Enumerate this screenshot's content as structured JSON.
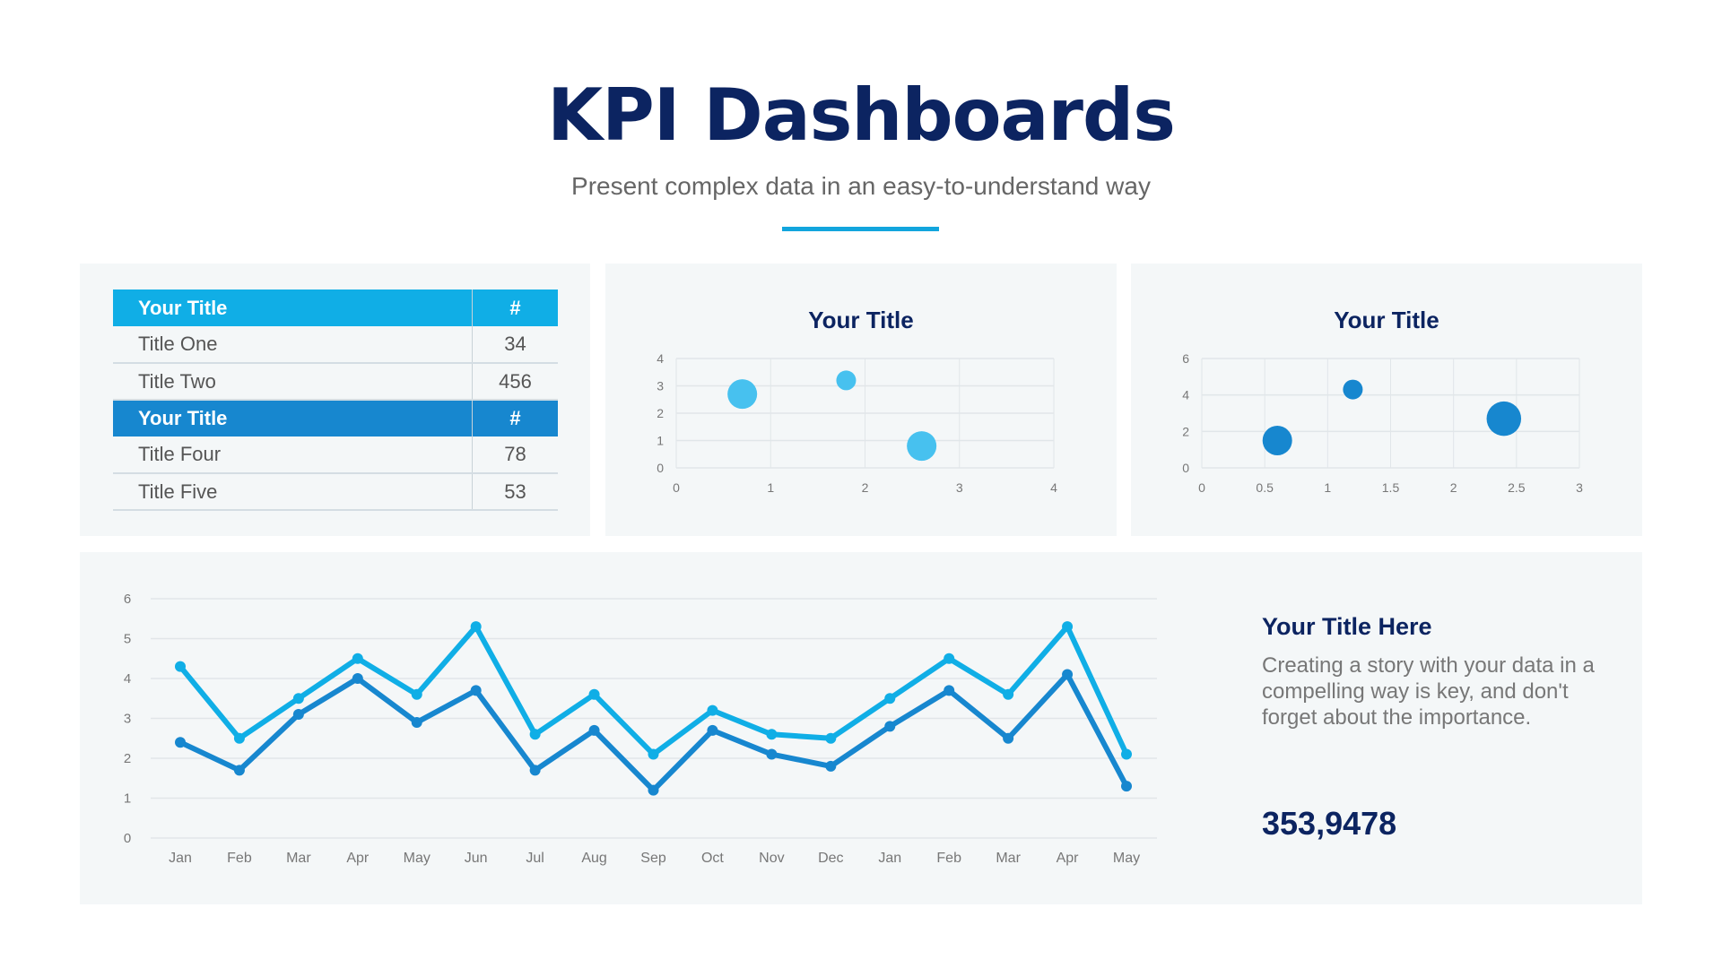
{
  "header": {
    "title": "KPI Dashboards",
    "subtitle": "Present complex data in an easy-to-understand way"
  },
  "colors": {
    "navy": "#0c2461",
    "light_blue": "#10aee6",
    "dark_blue": "#1787cf",
    "panel_bg": "#f4f7f8"
  },
  "table": {
    "rows": [
      {
        "label": "Your Title",
        "value": "#",
        "header": true
      },
      {
        "label": "Title One",
        "value": "34"
      },
      {
        "label": "Title Two",
        "value": "456"
      },
      {
        "label": "Your Title",
        "value": "#",
        "header": true
      },
      {
        "label": "Title Four",
        "value": "78"
      },
      {
        "label": "Title Five",
        "value": "53"
      }
    ]
  },
  "side": {
    "title": "Your Title Here",
    "text": "Creating a story with your data in a compelling way is key, and don't forget about the importance.",
    "number": "353,9478"
  },
  "chart_data": [
    {
      "type": "scatter",
      "title": "Your Title",
      "xlim": [
        0,
        4
      ],
      "ylim": [
        0,
        4
      ],
      "xticks": [
        "0",
        "1",
        "2",
        "3",
        "4"
      ],
      "yticks": [
        "0",
        "1",
        "2",
        "3",
        "4"
      ],
      "grid": true,
      "color": "#47c1ef",
      "points": [
        {
          "x": 0.7,
          "y": 2.7,
          "size": 3
        },
        {
          "x": 1.8,
          "y": 3.2,
          "size": 2
        },
        {
          "x": 2.6,
          "y": 0.8,
          "size": 3
        }
      ]
    },
    {
      "type": "scatter",
      "title": "Your Title",
      "xlim": [
        0,
        3
      ],
      "ylim": [
        0,
        6
      ],
      "xticks": [
        "0",
        "0.5",
        "1",
        "1.5",
        "2",
        "2.5",
        "3"
      ],
      "yticks": [
        "0",
        "2",
        "4",
        "6"
      ],
      "grid": true,
      "color": "#1787cf",
      "points": [
        {
          "x": 0.6,
          "y": 1.5,
          "size": 3
        },
        {
          "x": 1.2,
          "y": 4.3,
          "size": 2
        },
        {
          "x": 2.4,
          "y": 2.7,
          "size": 3.5
        }
      ]
    },
    {
      "type": "line",
      "ylim": [
        0,
        6
      ],
      "yticks": [
        "0",
        "1",
        "2",
        "3",
        "4",
        "5",
        "6"
      ],
      "grid": true,
      "categories": [
        "Jan",
        "Feb",
        "Mar",
        "Apr",
        "May",
        "Jun",
        "Jul",
        "Aug",
        "Sep",
        "Oct",
        "Nov",
        "Dec",
        "Jan",
        "Feb",
        "Mar",
        "Apr",
        "May"
      ],
      "series": [
        {
          "color": "#10aee6",
          "values": [
            4.3,
            2.5,
            3.5,
            4.5,
            3.6,
            5.3,
            2.6,
            3.6,
            2.1,
            3.2,
            2.6,
            2.5,
            3.5,
            4.5,
            3.6,
            5.3,
            2.1
          ]
        },
        {
          "color": "#1787cf",
          "values": [
            2.4,
            1.7,
            3.1,
            4.0,
            2.9,
            3.7,
            1.7,
            2.7,
            1.2,
            2.7,
            2.1,
            1.8,
            2.8,
            3.7,
            2.5,
            4.1,
            1.3
          ]
        }
      ]
    }
  ]
}
